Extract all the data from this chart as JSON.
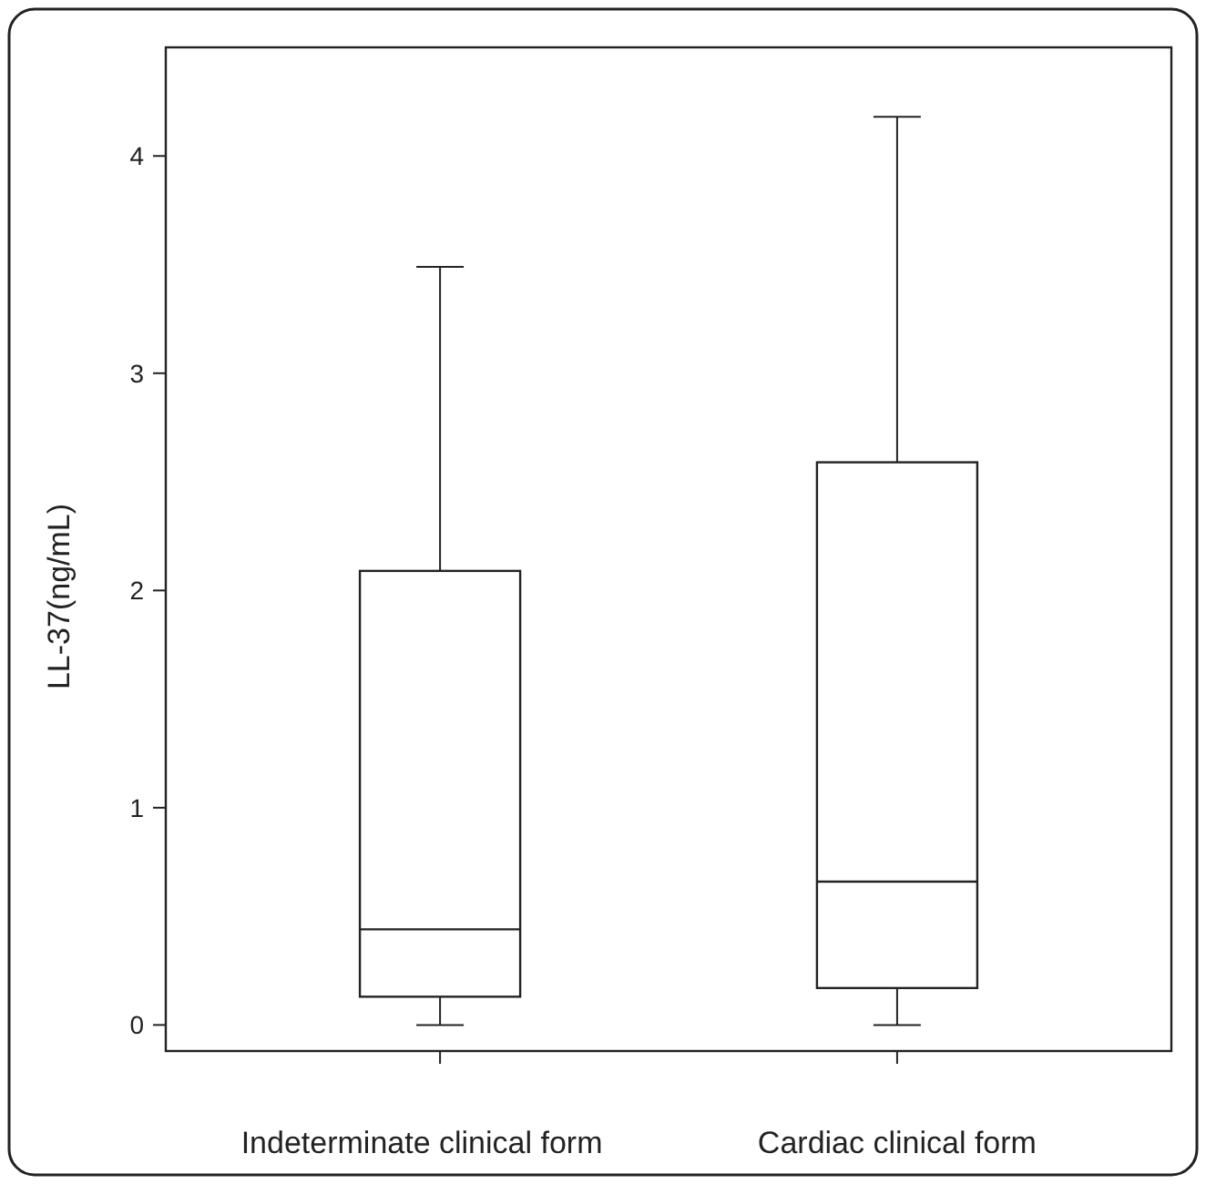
{
  "chart_data": {
    "type": "box",
    "categories": [
      "Indeterminate clinical form",
      "Cardiac clinical form"
    ],
    "boxes": [
      {
        "low": 0,
        "q1": 0.13,
        "median": 0.44,
        "q3": 2.09,
        "high": 3.49
      },
      {
        "low": 0,
        "q1": 0.17,
        "median": 0.66,
        "q3": 2.59,
        "high": 4.18
      }
    ],
    "ylabel": "LL-37(ng/mL)",
    "ylim": [
      -0.12,
      4.5
    ],
    "yticks": [
      0,
      1,
      2,
      3,
      4
    ],
    "grid": false,
    "color": "#222222"
  }
}
